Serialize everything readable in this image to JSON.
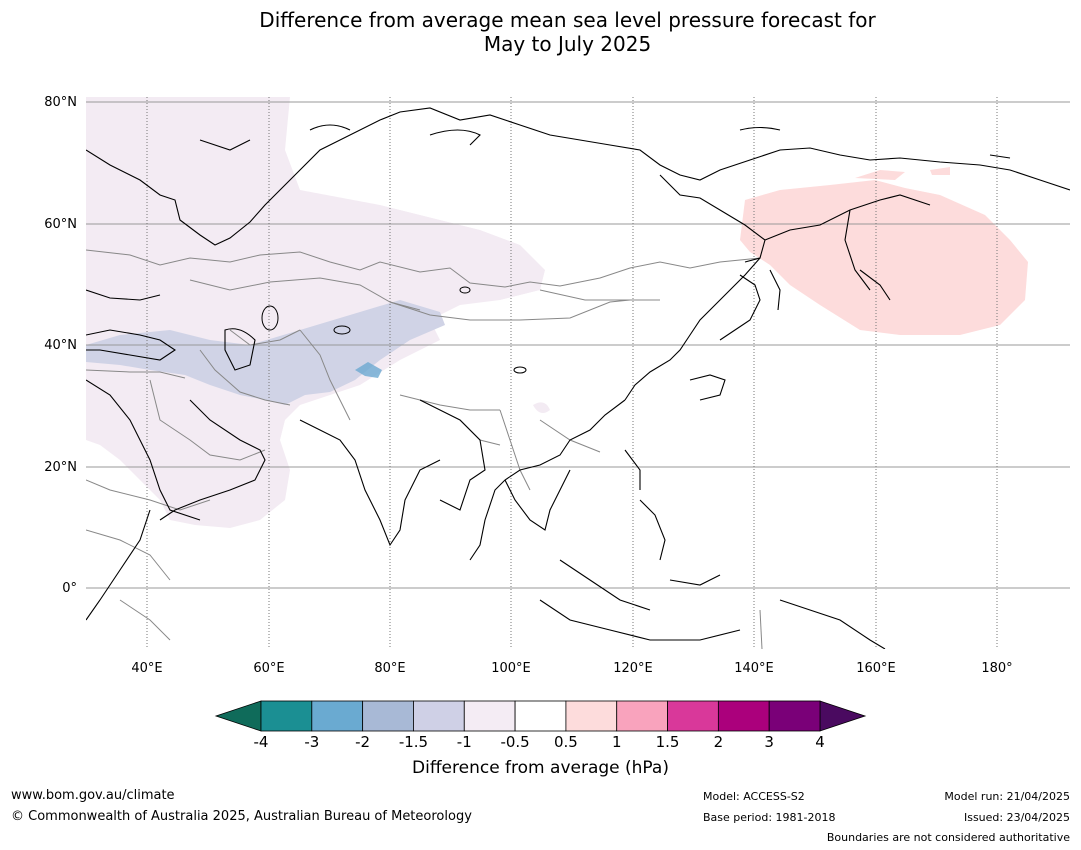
{
  "title": {
    "line1": "Difference from average mean sea level pressure forecast for",
    "line2": "May to July 2025"
  },
  "lat_labels": [
    "80°N",
    "60°N",
    "40°N",
    "20°N",
    "0°"
  ],
  "lon_labels": [
    "40°E",
    "60°E",
    "80°E",
    "100°E",
    "120°E",
    "140°E",
    "160°E",
    "180°"
  ],
  "map_extent": {
    "lon": [
      30,
      192
    ],
    "lat": [
      -10,
      81
    ]
  },
  "anomaly_regions": [
    {
      "region": "Eastern Europe to Central Asia and Arabia",
      "category": "-1 to -0.5",
      "color": "#f3ebf3"
    },
    {
      "region": "Middle East to Tibet band",
      "category": "-1.5 to -1",
      "color": "#d0d3e6"
    },
    {
      "region": "Western Himalaya",
      "category": "-3 to -2",
      "color": "#6ba9d1"
    },
    {
      "region": "Sea of Okhotsk and Kamchatka",
      "category": "0.5 to 1",
      "color": "#fddcdc"
    }
  ],
  "colorbar": {
    "title": "Difference from average (hPa)",
    "ticks": [
      "-4",
      "-3",
      "-2",
      "-1.5",
      "-1",
      "-0.5",
      "0.5",
      "1",
      "1.5",
      "2",
      "3",
      "4"
    ],
    "colors": [
      "#1b8f93",
      "#6aaad1",
      "#a8b9d6",
      "#cfd0e6",
      "#f4ecf4",
      "#ffffff",
      "#fddcdc",
      "#f9a3bd",
      "#d9389a",
      "#ab007c",
      "#7a0078"
    ],
    "extend_low_color": "#0f6b5a",
    "extend_high_color": "#4a0a60"
  },
  "footer": {
    "website": "www.bom.gov.au/climate",
    "copyright": "© Commonwealth of Australia 2025, Australian Bureau of Meteorology",
    "model": "Model: ACCESS-S2",
    "base_period": "Base period: 1981-2018",
    "model_run": "Model run: 21/04/2025",
    "issued": "Issued: 23/04/2025",
    "disclaimer": "Boundaries are not considered authoritative"
  }
}
